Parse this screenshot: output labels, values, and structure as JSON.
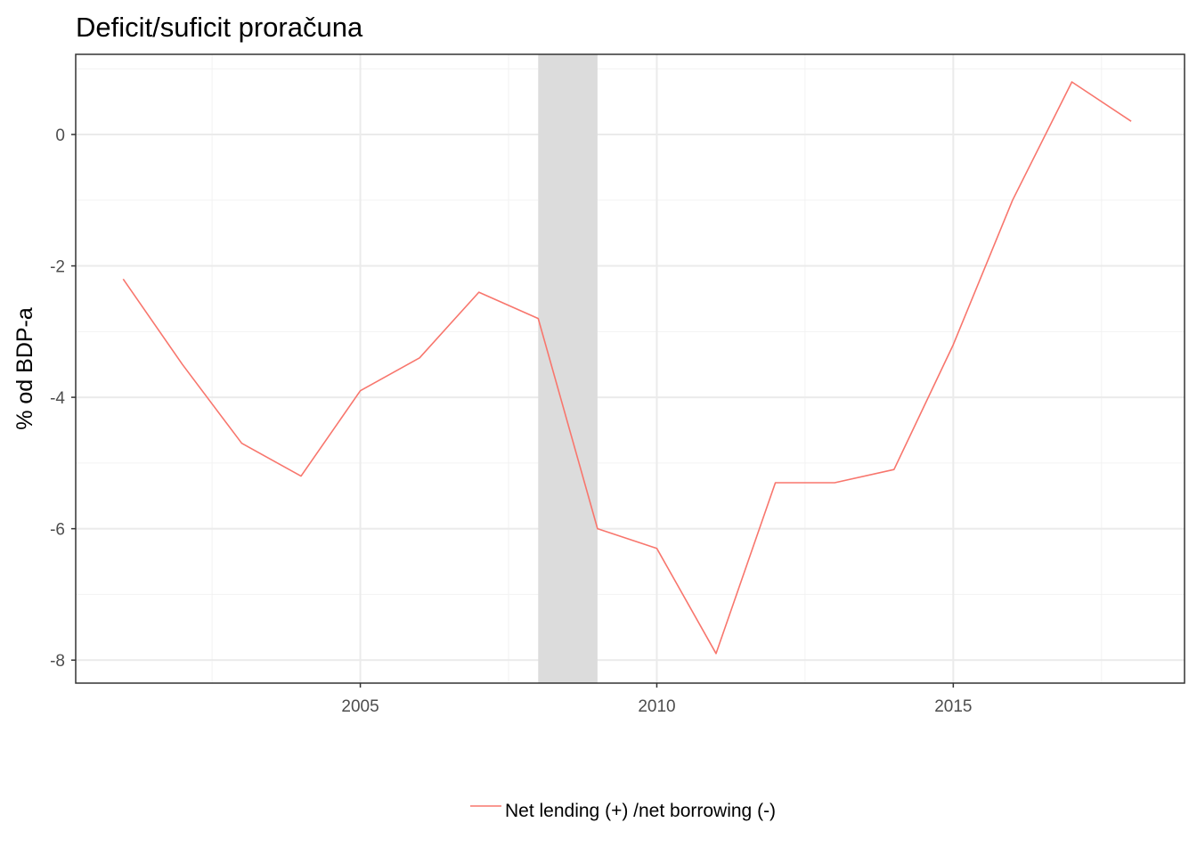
{
  "chart_data": {
    "type": "line",
    "title": "Deficit/suficit proračuna",
    "xlabel": "",
    "ylabel": "% od BDP-a",
    "xlim": [
      2000.2,
      2018.9
    ],
    "ylim": [
      -8.35,
      1.22
    ],
    "x_ticks": [
      2005,
      2010,
      2015
    ],
    "x_tick_labels": [
      "2005",
      "2010",
      "2015"
    ],
    "x_minor_ticks": [
      2002.5,
      2007.5,
      2012.5,
      2017.5
    ],
    "y_ticks": [
      0,
      -2,
      -4,
      -6,
      -8
    ],
    "y_tick_labels": [
      "0",
      "-2",
      "-4",
      "-6",
      "-8"
    ],
    "y_minor_ticks": [
      1,
      -1,
      -3,
      -5,
      -7
    ],
    "grid": true,
    "shaded_region": {
      "x_start": 2008,
      "x_end": 2009,
      "color": "#dcdcdc"
    },
    "series": [
      {
        "name": "Net lending (+) /net borrowing (-)",
        "color": "#F8766D",
        "x": [
          2001,
          2002,
          2003,
          2004,
          2005,
          2006,
          2007,
          2008,
          2009,
          2010,
          2011,
          2012,
          2013,
          2014,
          2015,
          2016,
          2017,
          2018
        ],
        "y": [
          -2.2,
          -3.5,
          -4.7,
          -5.2,
          -3.9,
          -3.4,
          -2.4,
          -2.8,
          -6.0,
          -6.3,
          -7.9,
          -5.3,
          -5.3,
          -5.1,
          -3.2,
          -1.0,
          0.8,
          0.2
        ]
      }
    ],
    "legend_position": "bottom"
  }
}
